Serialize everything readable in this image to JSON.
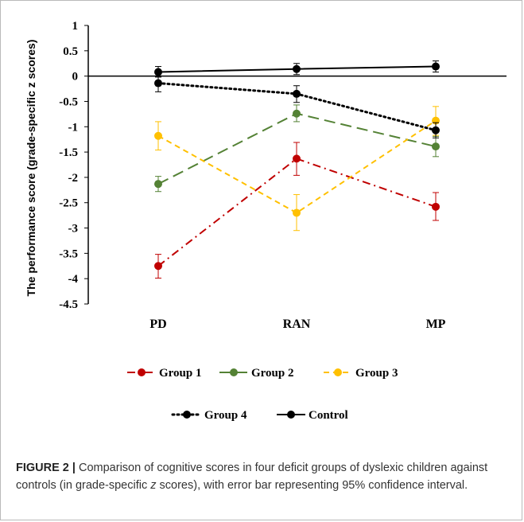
{
  "caption": {
    "label": "FIGURE 2 |",
    "text_before": "Comparison of cognitive scores in four deficit groups of dyslexic children against controls (in grade-specific",
    "italic": "z",
    "text_after": "scores), with error bar representing 95% confidence interval."
  },
  "chart_data": {
    "type": "line",
    "title": "",
    "xlabel": "",
    "ylabel": "The performance score (grade-specific z scores)",
    "categories": [
      "PD",
      "RAN",
      "MP"
    ],
    "ylim": [
      -4.5,
      1
    ],
    "yticks": [
      1,
      0.5,
      0,
      -0.5,
      -1,
      -1.5,
      -2,
      -2.5,
      -3,
      -3.5,
      -4,
      -4.5
    ],
    "ytick_labels": [
      "1",
      "0.5",
      "0",
      "-0.5",
      "-1",
      "-1.5",
      "-2",
      "-2.5",
      "-3",
      "-3.5",
      "-4",
      "-4.5"
    ],
    "grid": false,
    "legend_position": "bottom",
    "series": [
      {
        "name": "Group 1",
        "color": "#c00000",
        "dash": "dash-dot",
        "values": [
          -3.75,
          -1.63,
          -2.58
        ],
        "err_low": [
          -3.99,
          -1.96,
          -2.85
        ],
        "err_high": [
          -3.52,
          -1.31,
          -2.3
        ]
      },
      {
        "name": "Group 2",
        "color": "#548235",
        "dash": "long-dash",
        "values": [
          -2.13,
          -0.74,
          -1.39
        ],
        "err_low": [
          -2.28,
          -0.9,
          -1.59
        ],
        "err_high": [
          -1.98,
          -0.57,
          -1.19
        ]
      },
      {
        "name": "Group 3",
        "color": "#ffc000",
        "dash": "dash",
        "values": [
          -1.18,
          -2.7,
          -0.88
        ],
        "err_low": [
          -1.46,
          -3.05,
          -1.17
        ],
        "err_high": [
          -0.9,
          -2.34,
          -0.6
        ]
      },
      {
        "name": "Group 4",
        "color": "#000000",
        "dash": "dotted",
        "values": [
          -0.14,
          -0.35,
          -1.07
        ],
        "err_low": [
          -0.31,
          -0.52,
          -1.22
        ],
        "err_high": [
          0.0,
          -0.19,
          -0.92
        ]
      },
      {
        "name": "Control",
        "color": "#000000",
        "dash": "solid",
        "values": [
          0.08,
          0.14,
          0.19
        ],
        "err_low": [
          -0.02,
          0.03,
          0.08
        ],
        "err_high": [
          0.19,
          0.25,
          0.3
        ]
      }
    ],
    "legend_rows": [
      [
        "Group 1",
        "Group 2",
        "Group 3"
      ],
      [
        "Group 4",
        "Control"
      ]
    ]
  }
}
